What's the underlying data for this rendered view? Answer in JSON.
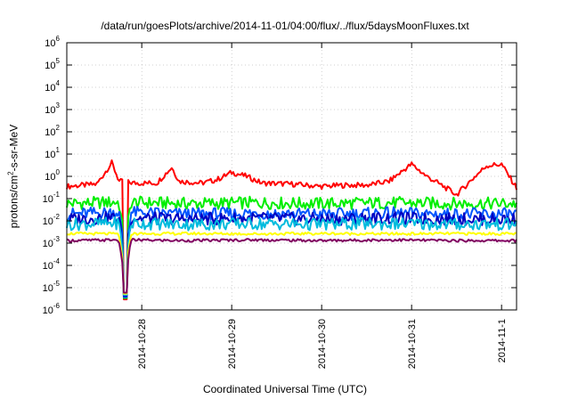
{
  "chart_data": {
    "type": "line",
    "title": "/data/run/goesPlots/archive/2014-11-01/04:00/flux/../flux/5daysMoonFluxes.txt",
    "xlabel": "Coordinated Universal Time (UTC)",
    "ylabel": "protons/cm²-s-sr-MeV",
    "yscale": "log",
    "ylim": [
      1e-06,
      1000000.0
    ],
    "yticks": [
      -6,
      -5,
      -4,
      -3,
      -2,
      -1,
      0,
      1,
      2,
      3,
      4,
      5,
      6
    ],
    "xlim": [
      "2014-10-27 04:00",
      "2014-11-01 04:00"
    ],
    "xticks": [
      "2014-10-28",
      "2014-10-29",
      "2014-10-30",
      "2014-10-31",
      "2014-11-1"
    ],
    "grid": true,
    "legend": "none",
    "series": [
      {
        "color": "#ff0000",
        "points": [
          [
            "2014-10-27 04:00",
            0.35
          ],
          [
            "2014-10-27 12:00",
            0.45
          ],
          [
            "2014-10-27 16:00",
            4.0
          ],
          [
            "2014-10-27 18:00",
            0.6
          ],
          [
            "2014-10-27 22:00",
            0.5
          ],
          [
            "2014-10-28 04:00",
            0.5
          ],
          [
            "2014-10-28 08:00",
            2.5
          ],
          [
            "2014-10-28 10:00",
            0.6
          ],
          [
            "2014-10-28 16:00",
            0.5
          ],
          [
            "2014-10-28 20:00",
            0.7
          ],
          [
            "2014-10-29 00:00",
            1.5
          ],
          [
            "2014-10-29 04:00",
            1.0
          ],
          [
            "2014-10-29 08:00",
            0.5
          ],
          [
            "2014-10-29 16:00",
            0.45
          ],
          [
            "2014-10-30 00:00",
            0.35
          ],
          [
            "2014-10-30 06:00",
            0.4
          ],
          [
            "2014-10-30 12:00",
            0.4
          ],
          [
            "2014-10-30 18:00",
            0.6
          ],
          [
            "2014-10-30 22:00",
            2.0
          ],
          [
            "2014-10-31 00:00",
            3.5
          ],
          [
            "2014-10-31 04:00",
            1.0
          ],
          [
            "2014-10-31 08:00",
            0.4
          ],
          [
            "2014-10-31 12:00",
            0.15
          ],
          [
            "2014-10-31 16:00",
            0.7
          ],
          [
            "2014-10-31 20:00",
            3.0
          ],
          [
            "2014-11-01 00:00",
            3.5
          ],
          [
            "2014-11-01 04:00",
            0.3
          ],
          [
            "2014-11-01 10:00",
            0.12
          ]
        ]
      },
      {
        "color": "#00ee00",
        "points": [
          [
            "2014-10-27 04:00",
            0.06
          ],
          [
            "2014-10-27 18:00",
            0.07
          ],
          [
            "2014-10-28 12:00",
            0.06
          ],
          [
            "2014-10-29 06:00",
            0.065
          ],
          [
            "2014-10-30 00:00",
            0.06
          ],
          [
            "2014-10-30 18:00",
            0.065
          ],
          [
            "2014-10-31 12:00",
            0.06
          ],
          [
            "2014-11-01 10:00",
            0.06
          ]
        ]
      },
      {
        "color": "#0055ff",
        "points": [
          [
            "2014-10-27 04:00",
            0.02
          ],
          [
            "2014-10-27 18:00",
            0.025
          ],
          [
            "2014-10-28 12:00",
            0.02
          ],
          [
            "2014-10-29 06:00",
            0.022
          ],
          [
            "2014-10-30 00:00",
            0.02
          ],
          [
            "2014-10-30 18:00",
            0.022
          ],
          [
            "2014-10-31 12:00",
            0.02
          ],
          [
            "2014-11-01 10:00",
            0.02
          ]
        ]
      },
      {
        "color": "#0000c0",
        "points": [
          [
            "2014-10-27 04:00",
            0.012
          ],
          [
            "2014-10-27 18:00",
            0.014
          ],
          [
            "2014-10-28 12:00",
            0.012
          ],
          [
            "2014-10-29 06:00",
            0.013
          ],
          [
            "2014-10-30 00:00",
            0.012
          ],
          [
            "2014-10-30 18:00",
            0.013
          ],
          [
            "2014-10-31 12:00",
            0.012
          ],
          [
            "2014-11-01 10:00",
            0.012
          ]
        ]
      },
      {
        "color": "#00bbdd",
        "points": [
          [
            "2014-10-27 04:00",
            0.007
          ],
          [
            "2014-10-27 18:00",
            0.008
          ],
          [
            "2014-10-28 12:00",
            0.007
          ],
          [
            "2014-10-29 06:00",
            0.0075
          ],
          [
            "2014-10-30 00:00",
            0.007
          ],
          [
            "2014-10-30 18:00",
            0.0075
          ],
          [
            "2014-10-31 12:00",
            0.007
          ],
          [
            "2014-11-01 10:00",
            0.007
          ]
        ]
      },
      {
        "color": "#ffff00",
        "points": [
          [
            "2014-10-27 04:00",
            0.0027
          ],
          [
            "2014-10-27 18:00",
            0.0026
          ],
          [
            "2014-10-28 12:00",
            0.0027
          ],
          [
            "2014-10-29 06:00",
            0.0026
          ],
          [
            "2014-10-30 00:00",
            0.0027
          ],
          [
            "2014-10-30 18:00",
            0.0026
          ],
          [
            "2014-10-31 12:00",
            0.0027
          ],
          [
            "2014-11-01 10:00",
            0.0026
          ]
        ]
      },
      {
        "color": "#800060",
        "points": [
          [
            "2014-10-27 04:00",
            0.0013
          ],
          [
            "2014-10-27 18:00",
            0.0014
          ],
          [
            "2014-10-28 12:00",
            0.0013
          ],
          [
            "2014-10-29 06:00",
            0.0014
          ],
          [
            "2014-10-30 00:00",
            0.0013
          ],
          [
            "2014-10-30 18:00",
            0.0014
          ],
          [
            "2014-10-31 12:00",
            0.0013
          ],
          [
            "2014-11-01 10:00",
            0.0013
          ]
        ]
      }
    ],
    "dip": {
      "time": "2014-10-27 19:30",
      "min": 3e-06
    }
  }
}
